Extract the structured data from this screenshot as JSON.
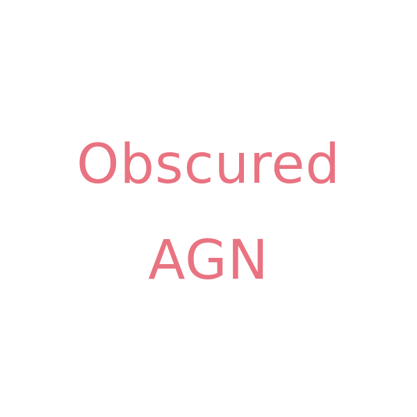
{
  "text": {
    "line1": "Obscured",
    "line2": "AGN"
  },
  "colors": {
    "background": "#ffffff",
    "text": "#e97381"
  }
}
